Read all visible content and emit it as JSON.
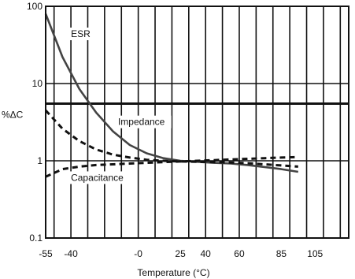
{
  "chart_data": {
    "type": "line",
    "title": "",
    "xlabel": "Temperature (°C)",
    "ylabel": "%ΔC",
    "xlim": [
      -55,
      125
    ],
    "ylim": [
      0.1,
      100
    ],
    "y_scale": "log",
    "grid": true,
    "x_tick_labels": [
      {
        "value": -55,
        "label": "-55"
      },
      {
        "value": -40,
        "label": "-40"
      },
      {
        "value": 0,
        "label": "-0"
      },
      {
        "value": 25,
        "label": "25"
      },
      {
        "value": 40,
        "label": "40"
      },
      {
        "value": 60,
        "label": "60"
      },
      {
        "value": 85,
        "label": "85"
      },
      {
        "value": 105,
        "label": "105"
      }
    ],
    "y_tick_labels": [
      {
        "value": 100,
        "label": "100"
      },
      {
        "value": 10,
        "label": "10"
      },
      {
        "value": 1,
        "label": "1"
      },
      {
        "value": 0.1,
        "label": "0.1"
      }
    ],
    "reference_line": {
      "y": 5.5
    },
    "series": [
      {
        "name": "ESR",
        "style": "solid",
        "x": [
          -55,
          -45,
          -35,
          -25,
          -15,
          -5,
          5,
          15,
          25,
          35,
          45,
          55,
          65,
          75,
          85,
          95
        ],
        "y": [
          80,
          22,
          8.5,
          4.2,
          2.4,
          1.6,
          1.25,
          1.08,
          1.0,
          0.97,
          0.94,
          0.92,
          0.88,
          0.83,
          0.78,
          0.72
        ]
      },
      {
        "name": "Impedance",
        "style": "dashed",
        "x": [
          -55,
          -45,
          -35,
          -25,
          -15,
          -5,
          5,
          15,
          25,
          35,
          45,
          55,
          65,
          75,
          85,
          95
        ],
        "y": [
          4.5,
          2.6,
          1.8,
          1.4,
          1.2,
          1.1,
          1.03,
          1.0,
          0.98,
          0.97,
          0.96,
          0.95,
          0.93,
          0.9,
          0.87,
          0.84
        ]
      },
      {
        "name": "Capacitance",
        "style": "dashed",
        "x": [
          -55,
          -45,
          -35,
          -25,
          -15,
          -5,
          5,
          15,
          25,
          35,
          45,
          55,
          65,
          75,
          85,
          95
        ],
        "y": [
          0.62,
          0.78,
          0.84,
          0.88,
          0.9,
          0.92,
          0.94,
          0.96,
          0.98,
          1.0,
          1.02,
          1.04,
          1.06,
          1.08,
          1.1,
          1.12
        ]
      }
    ]
  }
}
